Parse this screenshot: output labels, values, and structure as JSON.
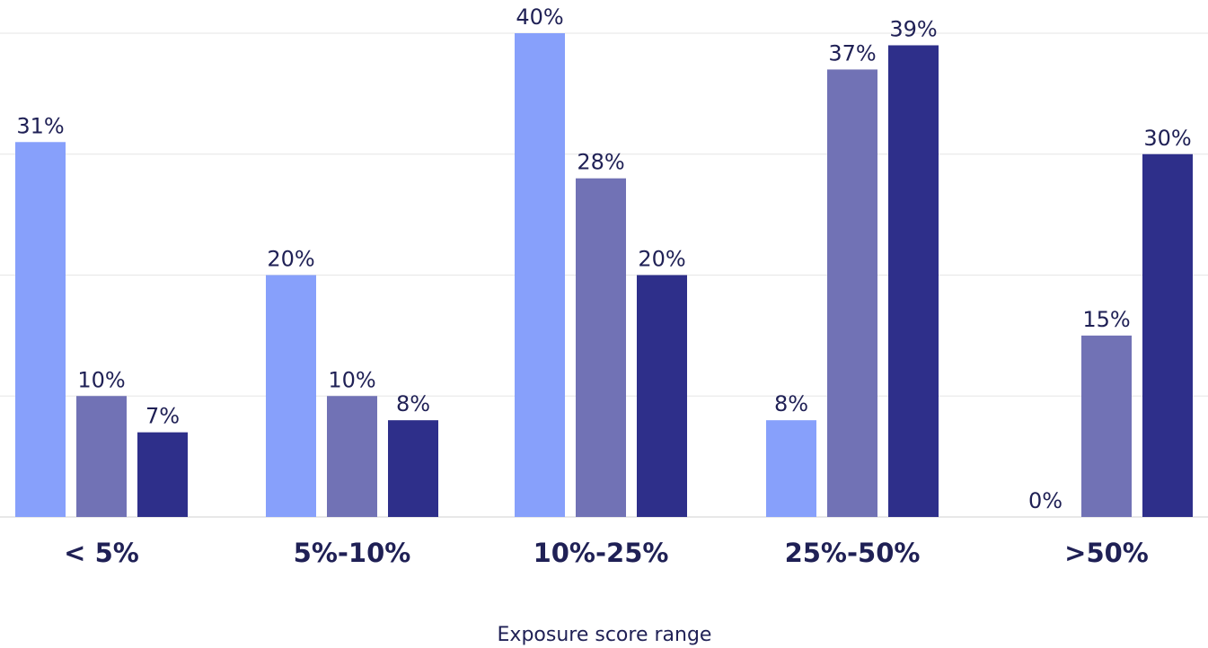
{
  "chart_data": {
    "type": "bar",
    "title": "",
    "xlabel": "Exposure score range",
    "ylabel": "",
    "categories": [
      "< 5%",
      "5%-10%",
      "10%-25%",
      "25%-50%",
      ">50%"
    ],
    "series": [
      {
        "values": [
          31,
          20,
          40,
          8,
          0
        ],
        "labels": [
          "31%",
          "20%",
          "40%",
          "8%",
          "0%"
        ],
        "color": "#87a0fb"
      },
      {
        "values": [
          10,
          10,
          28,
          37,
          15
        ],
        "labels": [
          "10%",
          "10%",
          "28%",
          "37%",
          "15%"
        ],
        "color": "#7172b5"
      },
      {
        "values": [
          7,
          8,
          20,
          39,
          30
        ],
        "labels": [
          "7%",
          "8%",
          "20%",
          "39%",
          "30%"
        ],
        "color": "#2e2f8a"
      }
    ],
    "ylim": [
      0,
      40
    ],
    "gridlines": [
      10,
      20,
      30,
      40
    ],
    "grid": true,
    "legend": "none"
  }
}
